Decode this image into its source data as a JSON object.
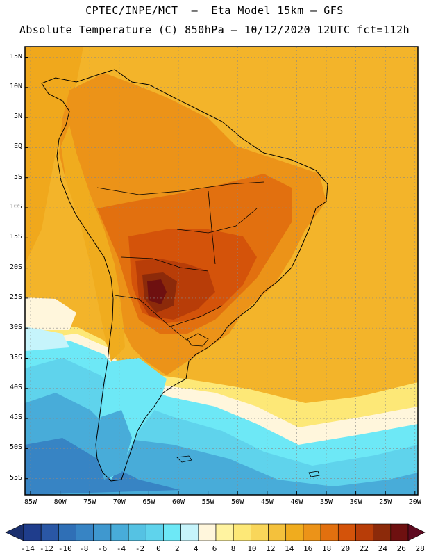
{
  "header": {
    "line1": "CPTEC/INPE/MCT  –  Eta Model 15km – GFS",
    "line2": "Absolute Temperature (C) 850hPa – 10/12/2020 12UTC fct=112h"
  },
  "map": {
    "lat_labels": [
      "15N",
      "10N",
      "5N",
      "EQ",
      "5S",
      "10S",
      "15S",
      "20S",
      "25S",
      "30S",
      "35S",
      "40S",
      "45S",
      "50S",
      "55S"
    ],
    "lon_labels": [
      "85W",
      "80W",
      "75W",
      "70W",
      "65W",
      "60W",
      "55W",
      "50W",
      "45W",
      "40W",
      "35W",
      "30W",
      "25W",
      "20W"
    ],
    "region": "South America"
  },
  "colorbar": {
    "labels": [
      "-14",
      "-12",
      "-10",
      "-8",
      "-6",
      "-4",
      "-2",
      "0",
      "2",
      "4",
      "6",
      "8",
      "10",
      "12",
      "14",
      "16",
      "18",
      "20",
      "22",
      "24",
      "26",
      "28"
    ],
    "colors": [
      "#1f3d8c",
      "#2a57a5",
      "#2f6fb6",
      "#3784c4",
      "#3f98cf",
      "#48acd9",
      "#55c2e3",
      "#5fd3ec",
      "#6de8f6",
      "#c6f4fb",
      "#fff6dc",
      "#fff3a0",
      "#fde877",
      "#f9d65a",
      "#f4c13c",
      "#f0ac1e",
      "#ec9318",
      "#e2700f",
      "#d4530a",
      "#b83d08",
      "#8c2a0a",
      "#6e1010"
    ],
    "under_color": "#1a2f6e",
    "over_color": "#5e0a20"
  }
}
